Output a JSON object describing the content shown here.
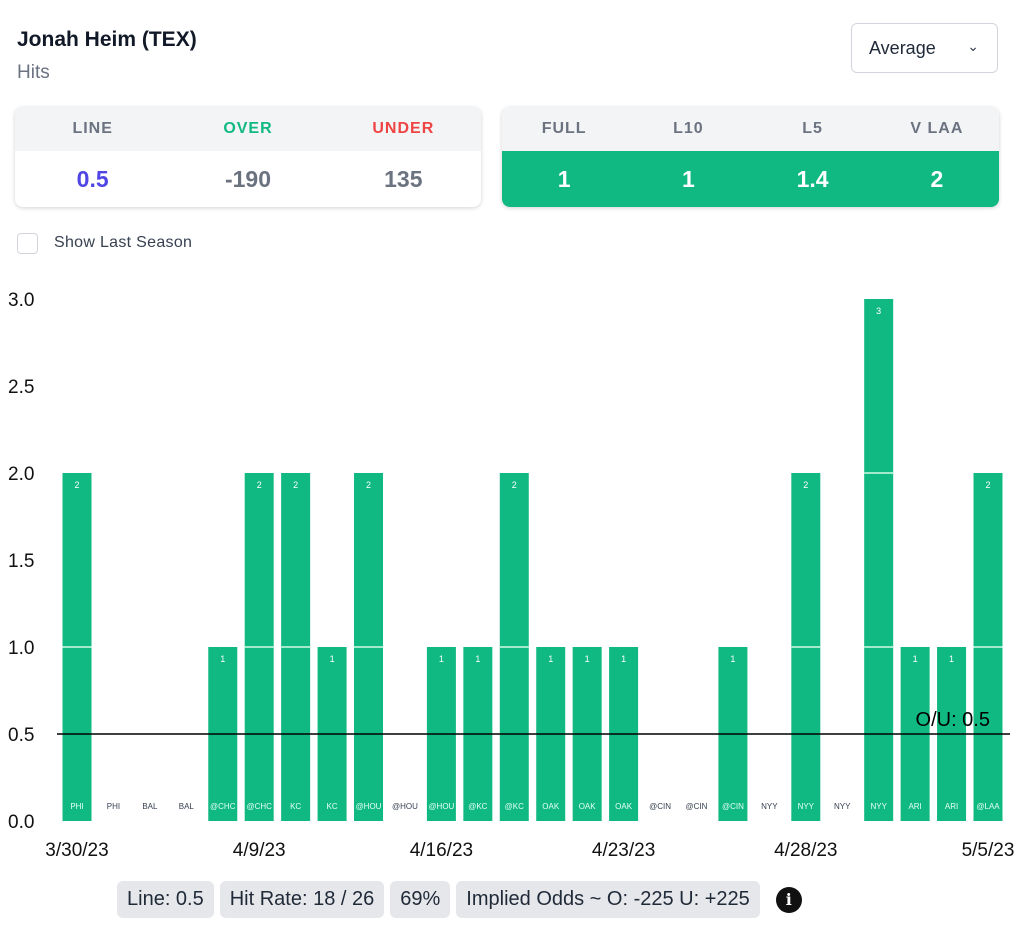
{
  "header": {
    "player": "Jonah Heim (TEX)",
    "stat": "Hits",
    "dropdown": "Average"
  },
  "odds": {
    "labels": [
      "LINE",
      "OVER",
      "UNDER"
    ],
    "values": [
      "0.5",
      "-190",
      "135"
    ],
    "colors": [
      "#4f46e5",
      "#6b7280",
      "#6b7280"
    ],
    "label_colors": [
      "#6b7280",
      "#10b981",
      "#ef4444"
    ]
  },
  "averages": {
    "labels": [
      "FULL",
      "L10",
      "L5",
      "V LAA"
    ],
    "values": [
      "1",
      "1",
      "1.4",
      "2"
    ]
  },
  "checkbox": {
    "label": "Show Last Season",
    "checked": false
  },
  "chart_data": {
    "type": "bar",
    "ylim": [
      0,
      3
    ],
    "yticks": [
      "0.0",
      "0.5",
      "1.0",
      "1.5",
      "2.0",
      "2.5",
      "3.0"
    ],
    "categories": [
      "PHI",
      "PHI",
      "BAL",
      "BAL",
      "@CHC",
      "@CHC",
      "KC",
      "KC",
      "@HOU",
      "@HOU",
      "@HOU",
      "@KC",
      "@KC",
      "OAK",
      "OAK",
      "OAK",
      "@CIN",
      "@CIN",
      "@CIN",
      "NYY",
      "NYY",
      "NYY",
      "NYY",
      "ARI",
      "ARI",
      "@LAA"
    ],
    "values": [
      2,
      0,
      0,
      0,
      1,
      2,
      2,
      1,
      2,
      0,
      1,
      1,
      2,
      1,
      1,
      1,
      0,
      0,
      1,
      0,
      2,
      0,
      3,
      1,
      1,
      2
    ],
    "xticks": [
      {
        "index": 0,
        "label": "3/30/23"
      },
      {
        "index": 5,
        "label": "4/9/23"
      },
      {
        "index": 10,
        "label": "4/16/23"
      },
      {
        "index": 15,
        "label": "4/23/23"
      },
      {
        "index": 20,
        "label": "4/28/23"
      },
      {
        "index": 25,
        "label": "5/5/23"
      }
    ],
    "line": {
      "value": 0.5,
      "label": "O/U: 0.5"
    },
    "bar_color": "#10b981"
  },
  "footer": {
    "line": "Line: 0.5",
    "hit_rate": "Hit Rate: 18 / 26",
    "pct": "69%",
    "implied": "Implied Odds ~ O: -225 U: +225"
  }
}
